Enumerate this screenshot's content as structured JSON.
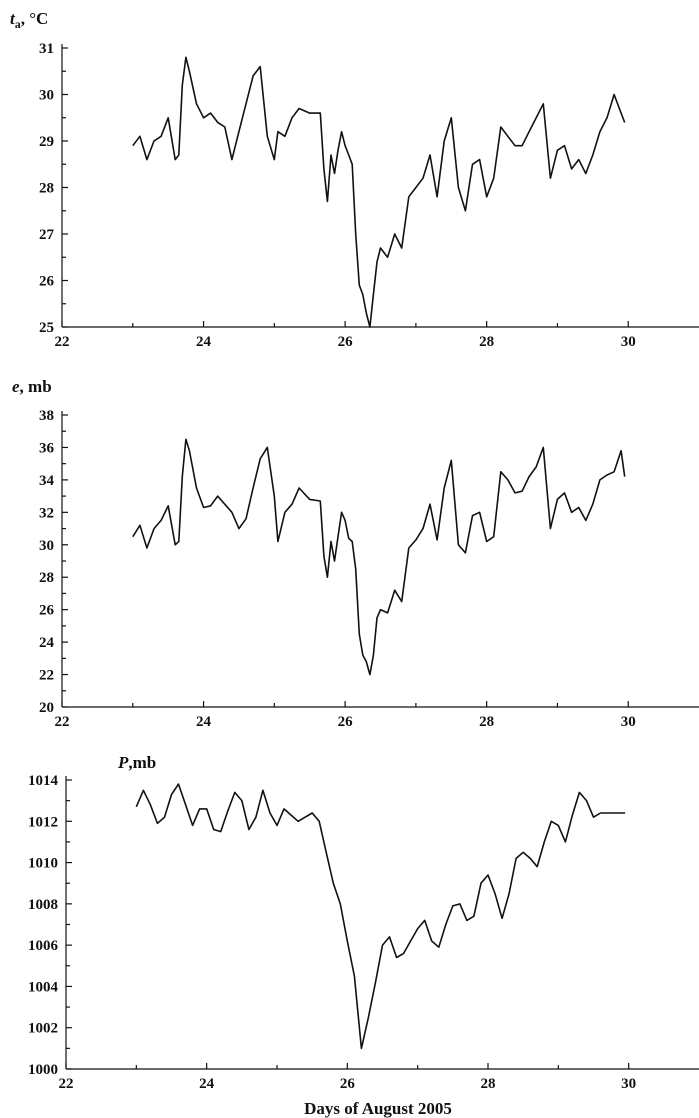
{
  "chart_data": [
    {
      "type": "line",
      "ylabel_parts": [
        "t",
        "a",
        ", °C"
      ],
      "xlim": [
        22,
        31
      ],
      "ylim": [
        25,
        31
      ],
      "xticks": [
        22,
        24,
        26,
        28,
        30
      ],
      "xtick_labels": [
        "22",
        "24",
        "26",
        "28",
        "30"
      ],
      "yticks": [
        25,
        26,
        27,
        28,
        29,
        30,
        31
      ],
      "ytick_labels": [
        "25",
        "26",
        "27",
        "28",
        "29",
        "30",
        "31"
      ],
      "series": [
        {
          "x": [
            23.0,
            23.1,
            23.2,
            23.3,
            23.4,
            23.5,
            23.6,
            23.65,
            23.7,
            23.75,
            23.8,
            23.9,
            24.0,
            24.1,
            24.2,
            24.3,
            24.4,
            24.5,
            24.6,
            24.7,
            24.8,
            24.9,
            25.0,
            25.05,
            25.15,
            25.25,
            25.35,
            25.5,
            25.65,
            25.7,
            25.75,
            25.8,
            25.85,
            25.9,
            25.95,
            26.0,
            26.05,
            26.1,
            26.15,
            26.2,
            26.25,
            26.3,
            26.35,
            26.4,
            26.45,
            26.5,
            26.6,
            26.7,
            26.8,
            26.9,
            27.0,
            27.1,
            27.2,
            27.3,
            27.4,
            27.5,
            27.6,
            27.7,
            27.8,
            27.9,
            28.0,
            28.1,
            28.2,
            28.3,
            28.4,
            28.5,
            28.6,
            28.7,
            28.8,
            28.9,
            29.0,
            29.1,
            29.2,
            29.3,
            29.4,
            29.5,
            29.6,
            29.7,
            29.8,
            29.9,
            29.95
          ],
          "y": [
            28.9,
            29.1,
            28.6,
            29.0,
            29.1,
            29.5,
            28.6,
            28.7,
            30.2,
            30.8,
            30.5,
            29.8,
            29.5,
            29.6,
            29.4,
            29.3,
            28.6,
            29.2,
            29.8,
            30.4,
            30.6,
            29.1,
            28.6,
            29.2,
            29.1,
            29.5,
            29.7,
            29.6,
            29.6,
            28.4,
            27.7,
            28.7,
            28.3,
            28.8,
            29.2,
            28.9,
            28.7,
            28.5,
            27.0,
            25.9,
            25.7,
            25.3,
            25.0,
            25.7,
            26.4,
            26.7,
            26.5,
            27.0,
            26.7,
            27.8,
            28.0,
            28.2,
            28.7,
            27.8,
            29.0,
            29.5,
            28.0,
            27.5,
            28.5,
            28.6,
            27.8,
            28.2,
            29.3,
            29.1,
            28.9,
            28.9,
            29.2,
            29.5,
            29.8,
            28.2,
            28.8,
            28.9,
            28.4,
            28.6,
            28.3,
            28.7,
            29.2,
            29.5,
            30.0,
            29.6,
            29.4
          ]
        }
      ]
    },
    {
      "type": "line",
      "ylabel_parts": [
        "e",
        "",
        ", mb"
      ],
      "xlim": [
        22,
        31
      ],
      "ylim": [
        20,
        38
      ],
      "xticks": [
        22,
        24,
        26,
        28,
        30
      ],
      "xtick_labels": [
        "22",
        "24",
        "26",
        "28",
        "30"
      ],
      "yticks": [
        20,
        22,
        24,
        26,
        28,
        30,
        32,
        34,
        36,
        38
      ],
      "ytick_labels": [
        "20",
        "22",
        "24",
        "26",
        "28",
        "30",
        "32",
        "34",
        "36",
        "38"
      ],
      "series": [
        {
          "x": [
            23.0,
            23.1,
            23.2,
            23.3,
            23.4,
            23.5,
            23.6,
            23.65,
            23.7,
            23.75,
            23.8,
            23.9,
            24.0,
            24.1,
            24.2,
            24.3,
            24.4,
            24.5,
            24.6,
            24.7,
            24.8,
            24.9,
            25.0,
            25.05,
            25.15,
            25.25,
            25.35,
            25.5,
            25.65,
            25.7,
            25.75,
            25.8,
            25.85,
            25.9,
            25.95,
            26.0,
            26.05,
            26.1,
            26.15,
            26.2,
            26.25,
            26.3,
            26.35,
            26.4,
            26.45,
            26.5,
            26.6,
            26.7,
            26.8,
            26.9,
            27.0,
            27.1,
            27.2,
            27.3,
            27.4,
            27.5,
            27.6,
            27.7,
            27.8,
            27.9,
            28.0,
            28.1,
            28.2,
            28.3,
            28.4,
            28.5,
            28.6,
            28.7,
            28.8,
            28.9,
            29.0,
            29.1,
            29.2,
            29.3,
            29.4,
            29.5,
            29.6,
            29.7,
            29.8,
            29.9,
            29.95
          ],
          "y": [
            30.5,
            31.2,
            29.8,
            31.0,
            31.5,
            32.4,
            30.0,
            30.2,
            34.2,
            36.5,
            35.8,
            33.5,
            32.3,
            32.4,
            33.0,
            32.5,
            32.0,
            31.0,
            31.6,
            33.5,
            35.3,
            36.0,
            33.0,
            30.2,
            32.0,
            32.5,
            33.5,
            32.8,
            32.7,
            29.3,
            28.0,
            30.2,
            29.0,
            30.5,
            32.0,
            31.5,
            30.4,
            30.2,
            28.5,
            24.5,
            23.2,
            22.8,
            22.0,
            23.2,
            25.5,
            26.0,
            25.8,
            27.2,
            26.5,
            29.8,
            30.3,
            31.0,
            32.5,
            30.3,
            33.5,
            35.2,
            30.0,
            29.5,
            31.8,
            32.0,
            30.2,
            30.5,
            34.5,
            34.0,
            33.2,
            33.3,
            34.2,
            34.8,
            36.0,
            31.0,
            32.8,
            33.2,
            32.0,
            32.3,
            31.5,
            32.5,
            34.0,
            34.3,
            34.5,
            35.8,
            34.2
          ]
        }
      ]
    },
    {
      "type": "line",
      "ylabel_parts": [
        "P",
        "",
        ",mb"
      ],
      "xlim": [
        22,
        31
      ],
      "ylim": [
        1000,
        1014
      ],
      "xticks": [
        22,
        24,
        26,
        28,
        30
      ],
      "xtick_labels": [
        "22",
        "24",
        "26",
        "28",
        "30"
      ],
      "yticks": [
        1000,
        1002,
        1004,
        1006,
        1008,
        1010,
        1012,
        1014
      ],
      "ytick_labels": [
        "1000",
        "1002",
        "1004",
        "1006",
        "1008",
        "1010",
        "1012",
        "1014"
      ],
      "xlabel": "Days of August 2005",
      "series": [
        {
          "x": [
            23.0,
            23.1,
            23.2,
            23.3,
            23.4,
            23.5,
            23.6,
            23.7,
            23.8,
            23.9,
            24.0,
            24.1,
            24.2,
            24.3,
            24.4,
            24.5,
            24.6,
            24.7,
            24.8,
            24.9,
            25.0,
            25.1,
            25.2,
            25.3,
            25.4,
            25.5,
            25.6,
            25.7,
            25.8,
            25.9,
            26.0,
            26.1,
            26.2,
            26.3,
            26.4,
            26.5,
            26.6,
            26.7,
            26.8,
            26.9,
            27.0,
            27.1,
            27.2,
            27.3,
            27.4,
            27.5,
            27.6,
            27.7,
            27.8,
            27.9,
            28.0,
            28.1,
            28.2,
            28.3,
            28.4,
            28.5,
            28.6,
            28.7,
            28.8,
            28.9,
            29.0,
            29.1,
            29.2,
            29.3,
            29.4,
            29.5,
            29.6,
            29.7,
            29.8,
            29.9,
            29.95
          ],
          "y": [
            1012.7,
            1013.5,
            1012.8,
            1011.9,
            1012.2,
            1013.3,
            1013.8,
            1012.8,
            1011.8,
            1012.6,
            1012.6,
            1011.6,
            1011.5,
            1012.5,
            1013.4,
            1013.0,
            1011.6,
            1012.2,
            1013.5,
            1012.4,
            1011.8,
            1012.6,
            1012.3,
            1012.0,
            1012.2,
            1012.4,
            1012.0,
            1010.5,
            1009.0,
            1008.0,
            1006.2,
            1004.5,
            1001.0,
            1002.5,
            1004.2,
            1006.0,
            1006.4,
            1005.4,
            1005.6,
            1006.2,
            1006.8,
            1007.2,
            1006.2,
            1005.9,
            1007.0,
            1007.9,
            1008.0,
            1007.2,
            1007.4,
            1009.0,
            1009.4,
            1008.5,
            1007.3,
            1008.5,
            1010.2,
            1010.5,
            1010.2,
            1009.8,
            1011.0,
            1012.0,
            1011.8,
            1011.0,
            1012.3,
            1013.4,
            1013.0,
            1012.2,
            1012.4,
            1012.4,
            1012.4,
            1012.4,
            1012.4
          ]
        }
      ]
    }
  ]
}
